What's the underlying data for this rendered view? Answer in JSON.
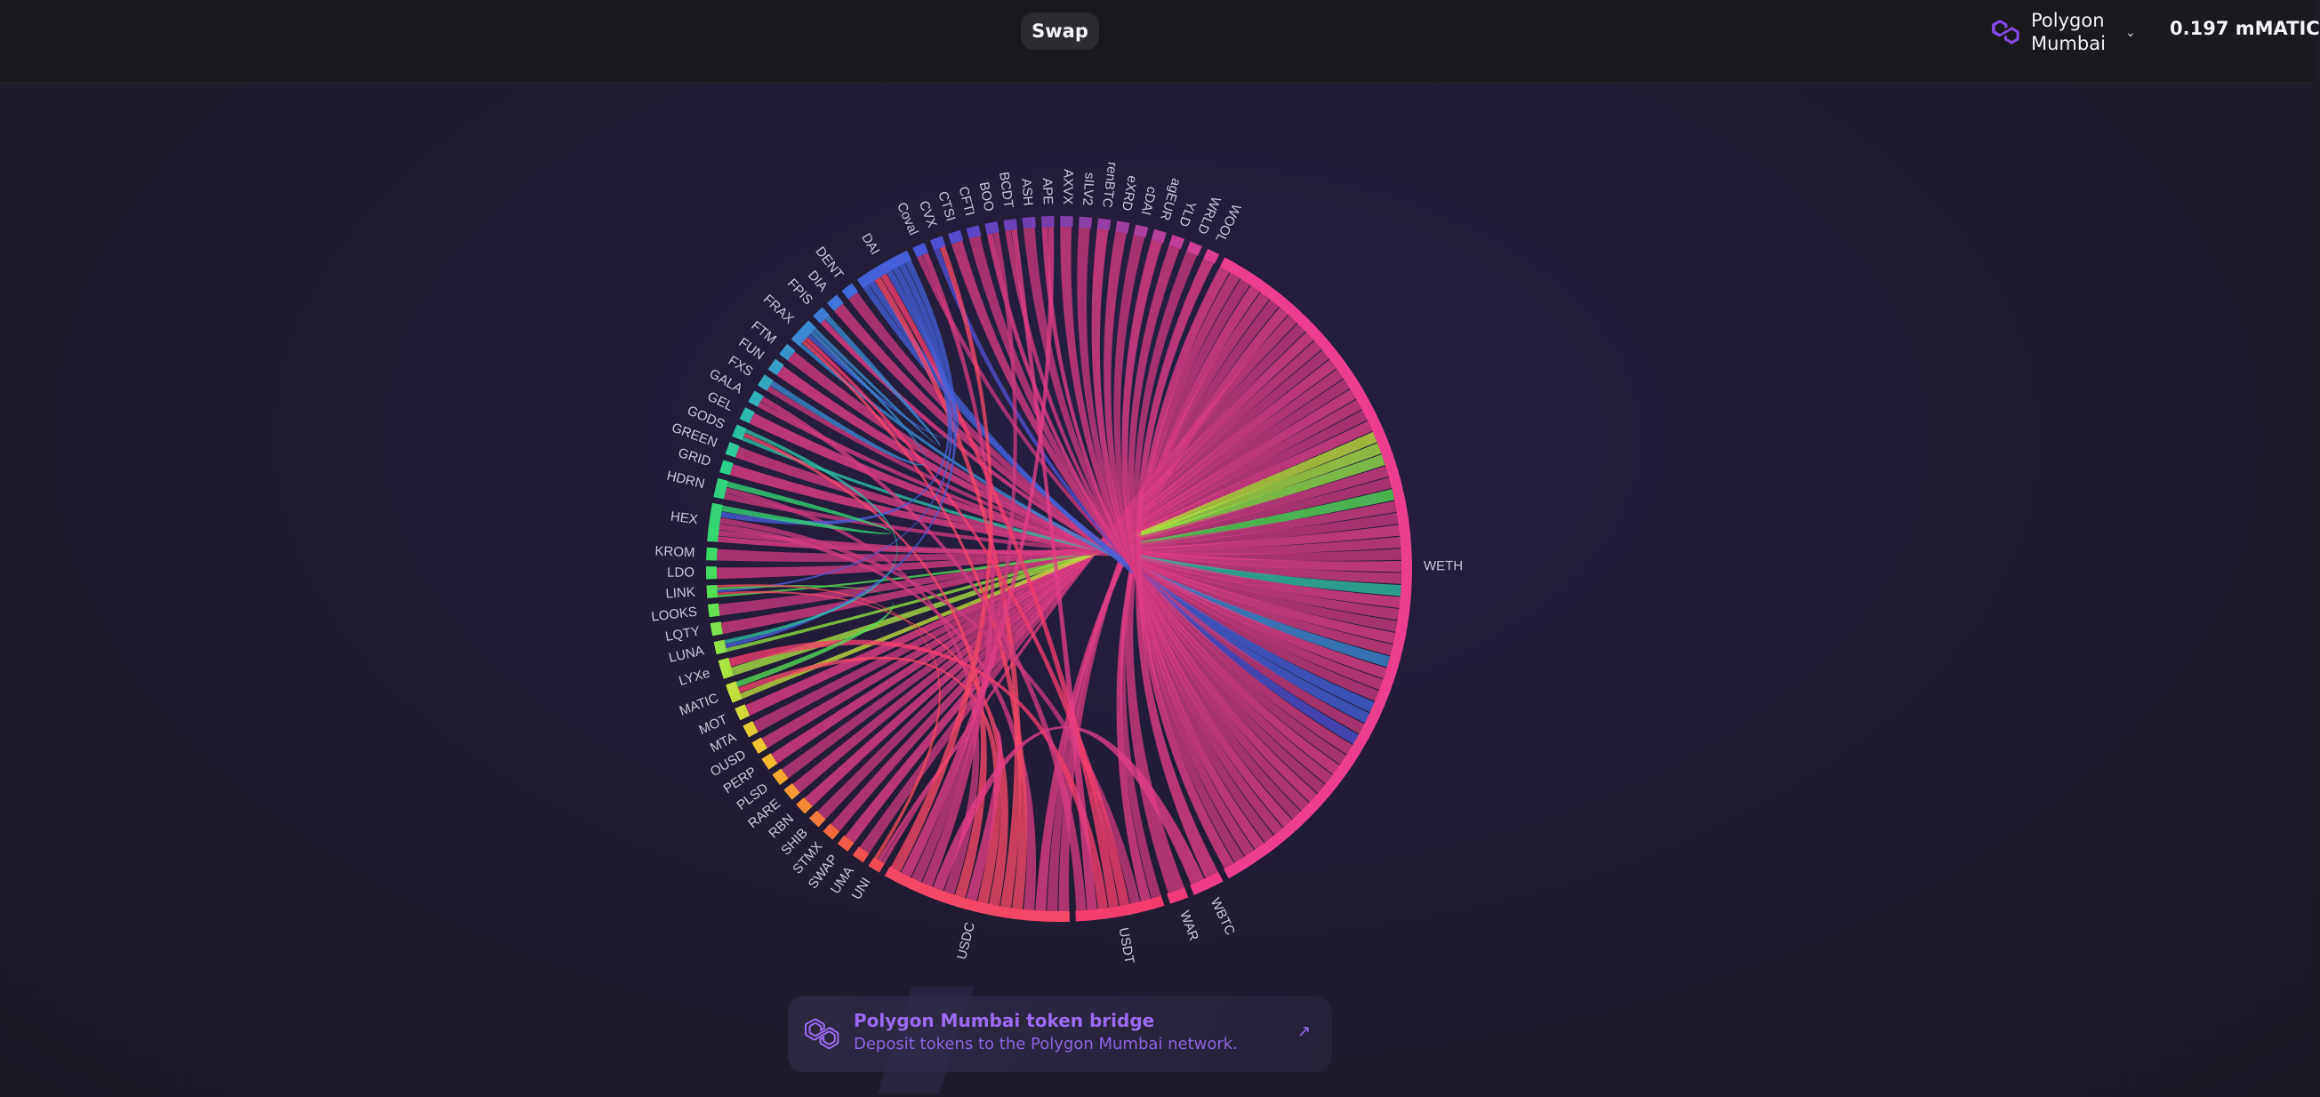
{
  "header": {
    "swap_tab": "Swap",
    "network": {
      "name": "Polygon Mumbai",
      "icon": "polygon-logo-icon",
      "chevron_icon": "chevron-down-icon"
    },
    "balance": "0.197 mMATIC"
  },
  "chart_data": {
    "type": "chord",
    "labels": [
      "WETH",
      "WBTC",
      "WAR",
      "USDT",
      "USDC",
      "UNI",
      "UMA",
      "SWAP",
      "STMX",
      "SHIB",
      "RBN",
      "RARE",
      "PLSD",
      "PERP",
      "OUSD",
      "MTA",
      "MOT",
      "MATIC",
      "LYXe",
      "LUNA",
      "LQTY",
      "LOOKS",
      "LINK",
      "LDO",
      "KROM",
      "HEX",
      "HDRN",
      "GRID",
      "GREEN",
      "GODS",
      "GEL",
      "GALA",
      "FXS",
      "FUN",
      "FTM",
      "FRAX",
      "FPIS",
      "DIA",
      "DENT",
      "DAI",
      "Coval",
      "CVX",
      "CTSI",
      "CFTI",
      "BOO",
      "BCDT",
      "ASH",
      "APE",
      "AXVX",
      "sILV2",
      "renBTC",
      "eXRD",
      "cDAI",
      "agEUR",
      "YLD",
      "WRLD",
      "WOOL"
    ],
    "weights": [
      118,
      5,
      3,
      14,
      30,
      2,
      2,
      2,
      2,
      2,
      2,
      2,
      2,
      2,
      2,
      2,
      2,
      3,
      3,
      2,
      2,
      2,
      2,
      2,
      2,
      6,
      3,
      2,
      2,
      2,
      2,
      2,
      2,
      2,
      2,
      4,
      2,
      2,
      2,
      9,
      2,
      2,
      2,
      2,
      2,
      2,
      2,
      2,
      2,
      2,
      2,
      2,
      2,
      2,
      2,
      2,
      2
    ],
    "colors": [
      "#ee3f8e",
      "#f23b86",
      "#f33a7a",
      "#f43d6e",
      "#f54868",
      "#f44c58",
      "#f2524f",
      "#f15d48",
      "#f06a42",
      "#f27a3c",
      "#f48a39",
      "#f59a36",
      "#f5a932",
      "#f4b930",
      "#efc632",
      "#e3cf35",
      "#d4d93b",
      "#c2e03f",
      "#abe244",
      "#94e24a",
      "#7ee24f",
      "#68e055",
      "#56dd5b",
      "#48da63",
      "#3ed86b",
      "#36d674",
      "#31d27f",
      "#2ecd8a",
      "#2ec796",
      "#2fc0a2",
      "#31b8ad",
      "#33b0b8",
      "#35a7c1",
      "#379ec8",
      "#3994ce",
      "#3b89d2",
      "#3d7ed5",
      "#3f74d7",
      "#4269d7",
      "#465fd6",
      "#4a56d3",
      "#5050cf",
      "#574bca",
      "#5e47c5",
      "#6544bf",
      "#6c42b9",
      "#7340b3",
      "#7a3fae",
      "#823fa9",
      "#8b3fa5",
      "#953fa2",
      "#9f3f9f",
      "#aa3f9c",
      "#b43f99",
      "#c03f96",
      "#cc3f93",
      "#da3f90"
    ],
    "bands": [
      [
        "WETH",
        "WBTC"
      ],
      [
        "WETH",
        "WAR"
      ],
      [
        "WETH",
        "USDT"
      ],
      [
        "WETH",
        "USDT"
      ],
      [
        "WETH",
        "USDC"
      ],
      [
        "WETH",
        "USDC"
      ],
      [
        "WETH",
        "USDC"
      ],
      [
        "WETH",
        "UNI"
      ],
      [
        "WETH",
        "UMA"
      ],
      [
        "WETH",
        "SWAP"
      ],
      [
        "WETH",
        "STMX"
      ],
      [
        "WETH",
        "SHIB"
      ],
      [
        "WETH",
        "RBN"
      ],
      [
        "WETH",
        "RARE"
      ],
      [
        "WETH",
        "PLSD"
      ],
      [
        "WETH",
        "PERP"
      ],
      [
        "WETH",
        "OUSD"
      ],
      [
        "WETH",
        "MTA"
      ],
      [
        "WETH",
        "MOT"
      ],
      [
        "WETH",
        "MATIC"
      ],
      [
        "WETH",
        "LYXe"
      ],
      [
        "WETH",
        "LUNA"
      ],
      [
        "WETH",
        "LQTY"
      ],
      [
        "WETH",
        "LOOKS"
      ],
      [
        "WETH",
        "LINK"
      ],
      [
        "WETH",
        "LDO"
      ],
      [
        "WETH",
        "KROM"
      ],
      [
        "WETH",
        "HEX"
      ],
      [
        "WETH",
        "HEX"
      ],
      [
        "WETH",
        "HDRN"
      ],
      [
        "WETH",
        "GRID"
      ],
      [
        "WETH",
        "GREEN"
      ],
      [
        "WETH",
        "GODS"
      ],
      [
        "WETH",
        "GEL"
      ],
      [
        "WETH",
        "GALA"
      ],
      [
        "WETH",
        "FXS"
      ],
      [
        "WETH",
        "FUN"
      ],
      [
        "WETH",
        "FTM"
      ],
      [
        "WETH",
        "FRAX"
      ],
      [
        "WETH",
        "FPIS"
      ],
      [
        "WETH",
        "DIA"
      ],
      [
        "WETH",
        "DENT"
      ],
      [
        "WETH",
        "DAI"
      ],
      [
        "WETH",
        "DAI"
      ],
      [
        "WETH",
        "Coval"
      ],
      [
        "WETH",
        "CVX"
      ],
      [
        "WETH",
        "CTSI"
      ],
      [
        "WETH",
        "CFTI"
      ],
      [
        "WETH",
        "BOO"
      ],
      [
        "WETH",
        "BCDT"
      ],
      [
        "WETH",
        "ASH"
      ],
      [
        "WETH",
        "APE"
      ],
      [
        "WETH",
        "AXVX"
      ],
      [
        "WETH",
        "sILV2"
      ],
      [
        "WETH",
        "renBTC"
      ],
      [
        "WETH",
        "eXRD"
      ],
      [
        "WETH",
        "cDAI"
      ],
      [
        "WETH",
        "agEUR"
      ],
      [
        "WETH",
        "YLD"
      ],
      [
        "WETH",
        "WRLD"
      ],
      [
        "WETH",
        "WOOL"
      ],
      [
        "USDC",
        "HEX"
      ],
      [
        "USDC",
        "FRAX"
      ],
      [
        "USDC",
        "DAI"
      ],
      [
        "USDC",
        "LINK"
      ],
      [
        "USDC",
        "MATIC"
      ],
      [
        "USDC",
        "UNI"
      ],
      [
        "USDC",
        "GODS"
      ],
      [
        "USDC",
        "HDRN"
      ],
      [
        "USDC",
        "WBTC"
      ],
      [
        "USDC",
        "Coval"
      ],
      [
        "USDC",
        "BOO"
      ],
      [
        "USDC",
        "APE"
      ],
      [
        "USDC",
        "CVX"
      ],
      [
        "USDT",
        "HEX"
      ],
      [
        "USDT",
        "FRAX"
      ],
      [
        "USDT",
        "DAI"
      ],
      [
        "USDT",
        "LYXe"
      ],
      [
        "USDT",
        "BCDT"
      ],
      [
        "USDT",
        "GALA"
      ],
      [
        "DAI",
        "FRAX"
      ],
      [
        "DAI",
        "HEX"
      ],
      [
        "DAI",
        "LINK"
      ],
      [
        "DAI",
        "LUNA"
      ],
      [
        "HEX",
        "HDRN"
      ],
      [
        "FRAX",
        "FXS"
      ],
      [
        "FRAX",
        "FPIS"
      ],
      [
        "LINK",
        "MATIC"
      ],
      [
        "GODS",
        "LUNA"
      ],
      [
        "UNI",
        "LINK"
      ]
    ]
  },
  "banner": {
    "title": "Polygon Mumbai token bridge",
    "subtitle": "Deposit tokens to the Polygon Mumbai network.",
    "logo_icon": "polygon-logo-icon",
    "arrow_icon": "arrow-up-right-icon",
    "accent": "#9b6af2"
  }
}
